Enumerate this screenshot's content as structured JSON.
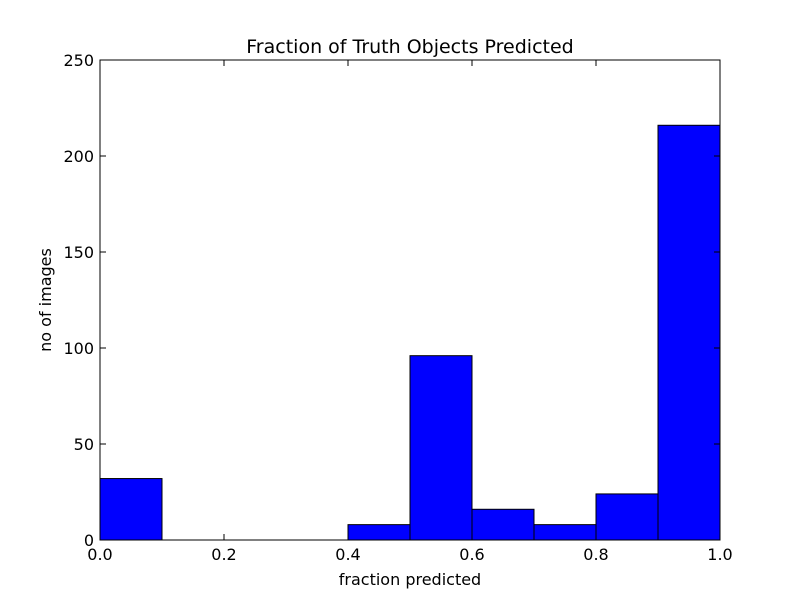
{
  "chart_data": {
    "type": "bar",
    "title": "Fraction of Truth Objects Predicted",
    "xlabel": "fraction predicted",
    "ylabel": "no of images",
    "xlim": [
      0.0,
      1.0
    ],
    "ylim": [
      0,
      250
    ],
    "xticks": [
      "0.0",
      "0.2",
      "0.4",
      "0.6",
      "0.8",
      "1.0"
    ],
    "yticks": [
      "0",
      "50",
      "100",
      "150",
      "200",
      "250"
    ],
    "bar_color": "#0000ff",
    "grid": false,
    "bins": [
      {
        "start": 0.0,
        "end": 0.1,
        "value": 32
      },
      {
        "start": 0.1,
        "end": 0.2,
        "value": 0
      },
      {
        "start": 0.2,
        "end": 0.3,
        "value": 0
      },
      {
        "start": 0.3,
        "end": 0.4,
        "value": 0
      },
      {
        "start": 0.4,
        "end": 0.5,
        "value": 8
      },
      {
        "start": 0.5,
        "end": 0.6,
        "value": 96
      },
      {
        "start": 0.6,
        "end": 0.7,
        "value": 16
      },
      {
        "start": 0.7,
        "end": 0.8,
        "value": 8
      },
      {
        "start": 0.8,
        "end": 0.9,
        "value": 24
      },
      {
        "start": 0.9,
        "end": 1.0,
        "value": 216
      }
    ]
  }
}
